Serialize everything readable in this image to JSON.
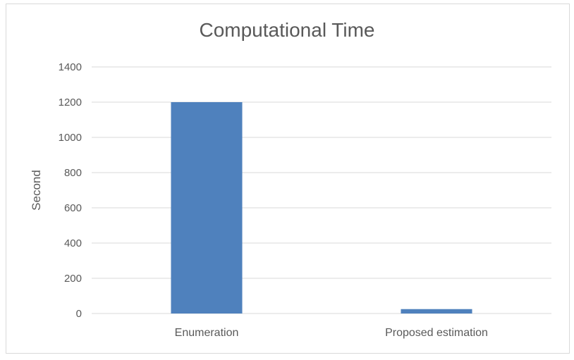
{
  "chart_data": {
    "type": "bar",
    "title": "Computational Time",
    "xlabel": "",
    "ylabel": "Second",
    "categories": [
      "Enumeration",
      "Proposed estimation"
    ],
    "values": [
      1200,
      25
    ],
    "ylim": [
      0,
      1400
    ],
    "yticks": [
      0,
      200,
      400,
      600,
      800,
      1000,
      1200,
      1400
    ],
    "grid": true,
    "legend": "none",
    "colors": {
      "bar": "#4f81bd",
      "grid": "#d9d9d9",
      "text": "#595959",
      "title": "#595959"
    }
  }
}
